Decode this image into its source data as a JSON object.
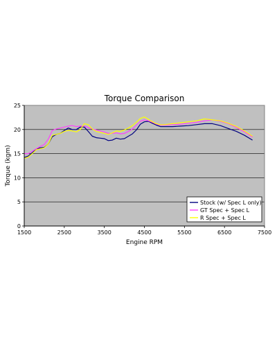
{
  "chart_data": {
    "type": "line",
    "title": "Torque Comparison",
    "xlabel": "Engine RPM",
    "ylabel": "Torque (kgm)",
    "xlim": [
      1500,
      7500
    ],
    "ylim": [
      0,
      25
    ],
    "xticks": [
      1500,
      2500,
      3500,
      4500,
      5500,
      6500,
      7500
    ],
    "yticks": [
      0,
      5,
      10,
      15,
      20,
      25
    ],
    "grid": true,
    "legend_position": "bottom-right",
    "plot_background": "#c0c0c0",
    "series": [
      {
        "name": "Stock (w/ Spec L only)",
        "color": "#000080",
        "x": [
          1500,
          1600,
          1700,
          1800,
          1900,
          2000,
          2100,
          2200,
          2300,
          2400,
          2500,
          2600,
          2700,
          2800,
          2900,
          3000,
          3100,
          3200,
          3300,
          3400,
          3500,
          3600,
          3700,
          3800,
          3900,
          4000,
          4100,
          4200,
          4300,
          4400,
          4500,
          4600,
          4700,
          4800,
          4900,
          5000,
          5200,
          5400,
          5600,
          5800,
          6000,
          6200,
          6400,
          6600,
          6800,
          7000,
          7200
        ],
        "y": [
          14.2,
          14.5,
          15.2,
          15.9,
          16.2,
          16.3,
          17.0,
          18.5,
          19.0,
          19.2,
          19.8,
          20.3,
          20.0,
          20.0,
          20.5,
          20.5,
          19.6,
          18.6,
          18.3,
          18.2,
          18.1,
          17.7,
          17.8,
          18.2,
          18.0,
          18.1,
          18.6,
          19.1,
          19.9,
          21.1,
          21.6,
          21.7,
          21.3,
          20.9,
          20.6,
          20.6,
          20.6,
          20.7,
          20.8,
          21.0,
          21.2,
          21.2,
          20.8,
          20.2,
          19.6,
          18.8,
          17.8
        ]
      },
      {
        "name": "GT Spec + Spec L",
        "color": "#ff40ff",
        "x": [
          1500,
          1600,
          1700,
          1800,
          1900,
          2000,
          2100,
          2200,
          2300,
          2400,
          2500,
          2600,
          2700,
          2800,
          2900,
          3000,
          3100,
          3200,
          3300,
          3400,
          3500,
          3600,
          3700,
          3800,
          3900,
          4000,
          4100,
          4200,
          4300,
          4400,
          4500,
          4600,
          4700,
          4800,
          4900,
          5000,
          5200,
          5400,
          5600,
          5800,
          6000,
          6200,
          6400,
          6600,
          6800,
          7000,
          7200
        ],
        "y": [
          15.0,
          15.0,
          15.5,
          16.0,
          16.5,
          16.9,
          18.0,
          19.8,
          20.1,
          20.3,
          20.5,
          20.7,
          20.8,
          20.6,
          20.7,
          20.7,
          20.4,
          20.1,
          19.9,
          19.7,
          19.5,
          19.2,
          19.2,
          19.3,
          19.1,
          19.2,
          19.6,
          20.1,
          20.9,
          21.7,
          22.0,
          21.8,
          21.5,
          21.1,
          20.9,
          20.9,
          21.0,
          21.1,
          21.3,
          21.5,
          21.8,
          22.0,
          21.7,
          21.2,
          20.4,
          19.5,
          18.4
        ]
      },
      {
        "name": "R Spec + Spec L",
        "color": "#ffff00",
        "x": [
          1500,
          1600,
          1700,
          1800,
          1900,
          2000,
          2100,
          2200,
          2300,
          2400,
          2500,
          2600,
          2700,
          2800,
          2900,
          3000,
          3100,
          3200,
          3300,
          3400,
          3500,
          3600,
          3700,
          3800,
          3900,
          4000,
          4100,
          4200,
          4300,
          4400,
          4500,
          4600,
          4700,
          4800,
          4900,
          5000,
          5200,
          5400,
          5600,
          5800,
          6000,
          6200,
          6400,
          6600,
          6800,
          7000,
          7200
        ],
        "y": [
          14.0,
          14.3,
          15.0,
          15.8,
          16.0,
          16.2,
          17.0,
          18.8,
          19.0,
          19.2,
          19.6,
          19.8,
          19.7,
          19.5,
          20.0,
          21.2,
          21.0,
          20.1,
          19.6,
          19.4,
          19.2,
          19.0,
          19.3,
          19.7,
          19.6,
          19.9,
          20.3,
          20.8,
          21.5,
          22.3,
          22.6,
          22.1,
          21.6,
          21.2,
          21.0,
          21.0,
          21.2,
          21.4,
          21.6,
          21.8,
          22.2,
          22.0,
          21.8,
          21.3,
          20.6,
          19.7,
          18.6
        ]
      }
    ]
  }
}
